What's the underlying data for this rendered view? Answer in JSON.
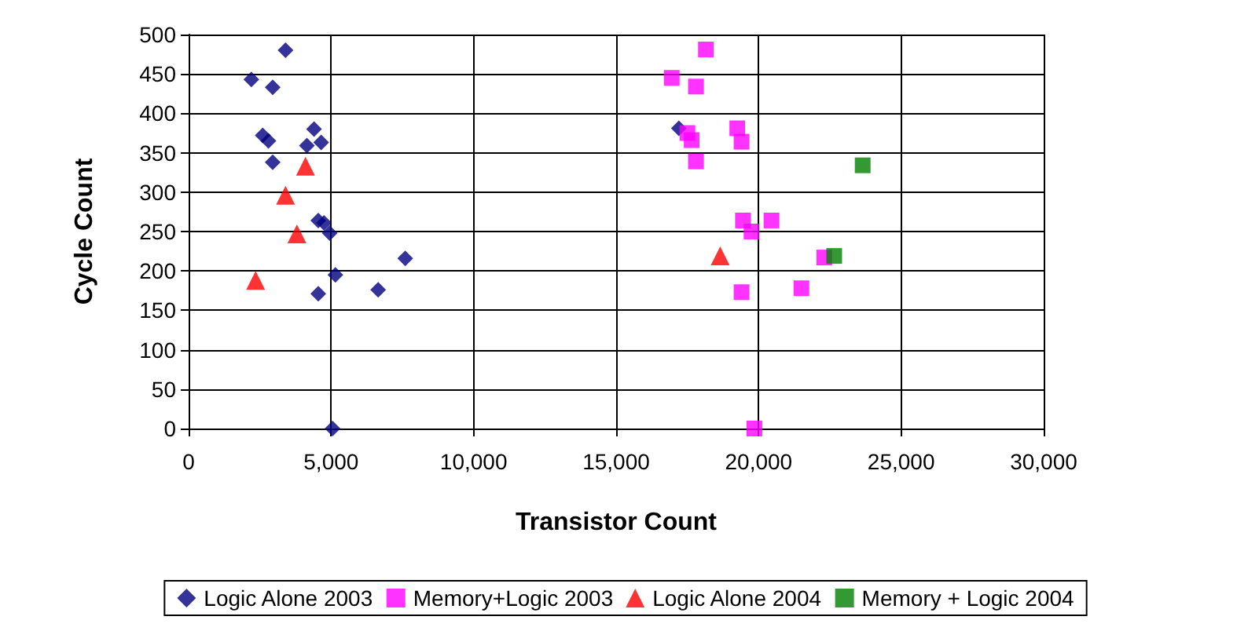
{
  "chart_data": {
    "type": "scatter",
    "xlabel": "Transistor Count",
    "ylabel": "Cycle Count",
    "xlim": [
      0,
      30000
    ],
    "xticks": [
      0,
      {
        "value": 5000,
        "label": "5,000"
      },
      {
        "value": 10000,
        "label": "10,000"
      },
      {
        "value": 15000,
        "label": "15,000"
      },
      {
        "value": 20000,
        "label": "20,000"
      },
      {
        "value": 25000,
        "label": "25,000"
      },
      {
        "value": 30000,
        "label": "30,000"
      }
    ],
    "ylim": [
      0,
      500
    ],
    "yticks": [
      0,
      50,
      100,
      150,
      200,
      250,
      300,
      350,
      400,
      450,
      500
    ],
    "grid": true,
    "legend": "bottom",
    "series": [
      {
        "name": "Logic Alone 2003",
        "color": "#000080",
        "marker": "diamond",
        "x": [
          3400,
          2200,
          2950,
          2600,
          2800,
          4400,
          4150,
          4650,
          2950,
          4550,
          4750,
          4950,
          7600,
          5150,
          4550,
          6650,
          5050,
          17200
        ],
        "values": [
          480,
          443,
          433,
          372,
          365,
          380,
          359,
          363,
          338,
          264,
          261,
          248,
          216,
          195,
          171,
          176,
          0,
          381
        ]
      },
      {
        "name": "Memory+Logic 2003",
        "color": "#ff00ff",
        "marker": "square",
        "x": [
          18150,
          16950,
          17800,
          17500,
          17650,
          19250,
          19400,
          17800,
          19450,
          20450,
          19750,
          22300,
          19400,
          21500,
          19850
        ],
        "values": [
          481,
          445,
          434,
          375,
          366,
          381,
          364,
          339,
          264,
          264,
          250,
          217,
          173,
          178,
          0
        ]
      },
      {
        "name": "Logic Alone 2004",
        "color": "#ff0000",
        "marker": "triangle",
        "x": [
          4100,
          3400,
          3800,
          2350,
          18650
        ],
        "values": [
          333,
          296,
          247,
          188,
          219
        ]
      },
      {
        "name": "Memory + Logic 2004",
        "color": "#008000",
        "marker": "square",
        "x": [
          23650,
          22650
        ],
        "values": [
          334,
          219
        ]
      }
    ]
  }
}
